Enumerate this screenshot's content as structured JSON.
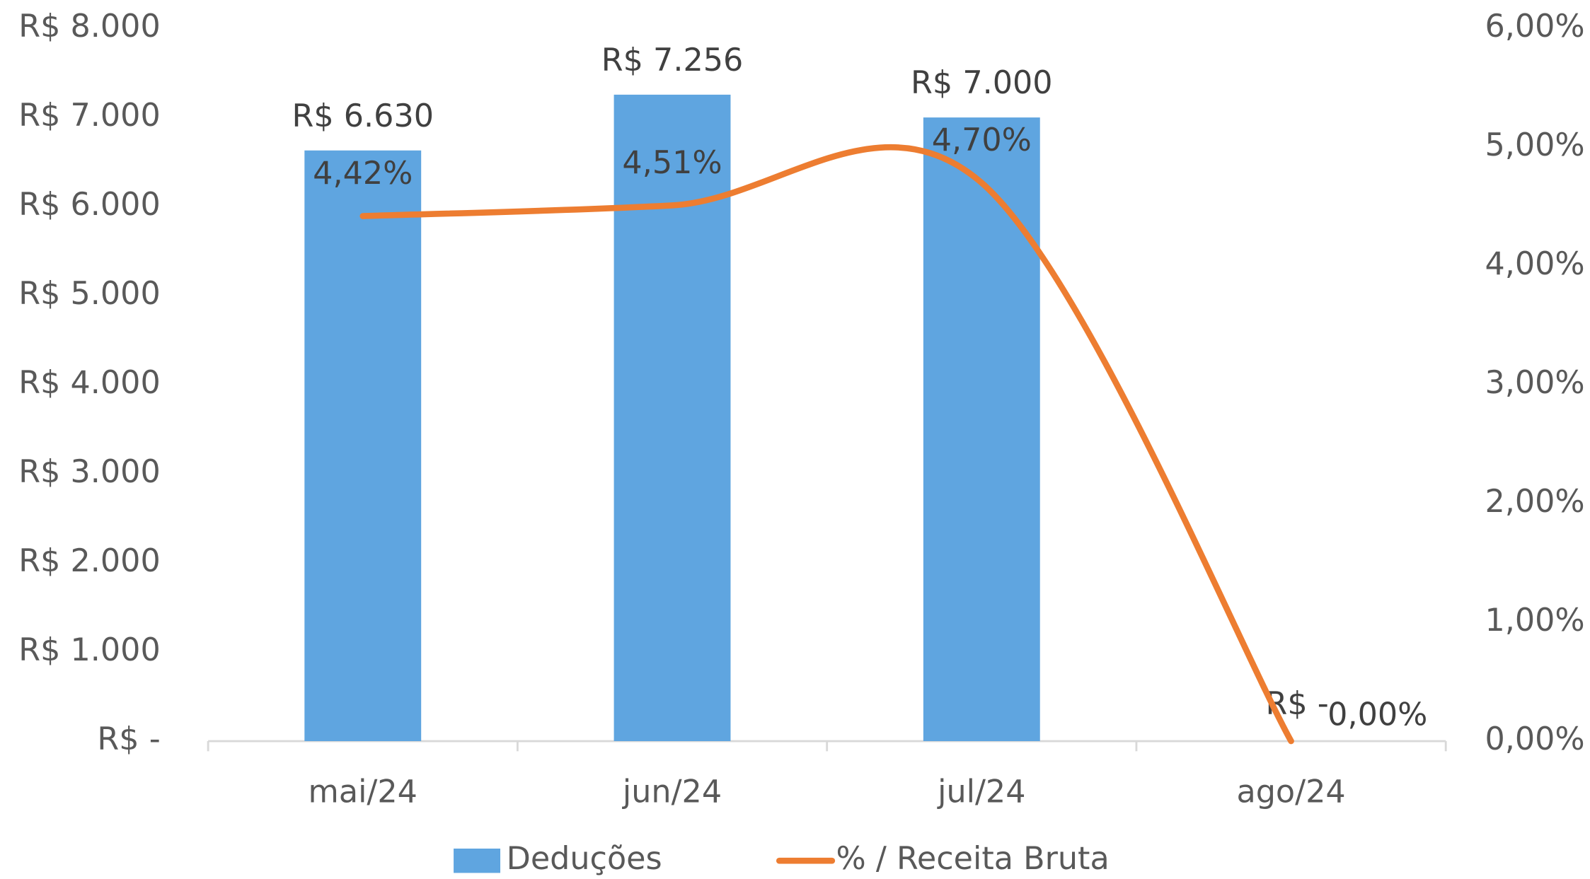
{
  "chart_data": {
    "type": "bar",
    "categories": [
      "mai/24",
      "jun/24",
      "jul/24",
      "ago/24"
    ],
    "series": [
      {
        "name": "Deduções",
        "type": "bar",
        "color": "#5fa5e0",
        "values": [
          6630,
          7256,
          7000,
          0
        ],
        "value_labels": [
          "R$ 6.630",
          "R$ 7.256",
          "R$ 7.000",
          "R$ -"
        ]
      },
      {
        "name": "% / Receita Bruta",
        "type": "line",
        "axis": "y2",
        "color": "#ed7d31",
        "smooth": true,
        "values": [
          4.42,
          4.51,
          4.7,
          0.0
        ],
        "value_labels": [
          "4,42%",
          "4,51%",
          "4,70%",
          "0,00%"
        ]
      }
    ],
    "ylim": [
      0,
      8000
    ],
    "yticks": [
      {
        "value": 0,
        "label": "R$ -"
      },
      {
        "value": 1000,
        "label": "R$ 1.000"
      },
      {
        "value": 2000,
        "label": "R$ 2.000"
      },
      {
        "value": 3000,
        "label": "R$ 3.000"
      },
      {
        "value": 4000,
        "label": "R$ 4.000"
      },
      {
        "value": 5000,
        "label": "R$ 5.000"
      },
      {
        "value": 6000,
        "label": "R$ 6.000"
      },
      {
        "value": 7000,
        "label": "R$ 7.000"
      },
      {
        "value": 8000,
        "label": "R$ 8.000"
      }
    ],
    "y2lim": [
      0,
      6
    ],
    "y2ticks": [
      {
        "value": 0,
        "label": "0,00%"
      },
      {
        "value": 1,
        "label": "1,00%"
      },
      {
        "value": 2,
        "label": "2,00%"
      },
      {
        "value": 3,
        "label": "3,00%"
      },
      {
        "value": 4,
        "label": "4,00%"
      },
      {
        "value": 5,
        "label": "5,00%"
      },
      {
        "value": 6,
        "label": "6,00%"
      }
    ],
    "legend": "bottom",
    "grid": false
  }
}
